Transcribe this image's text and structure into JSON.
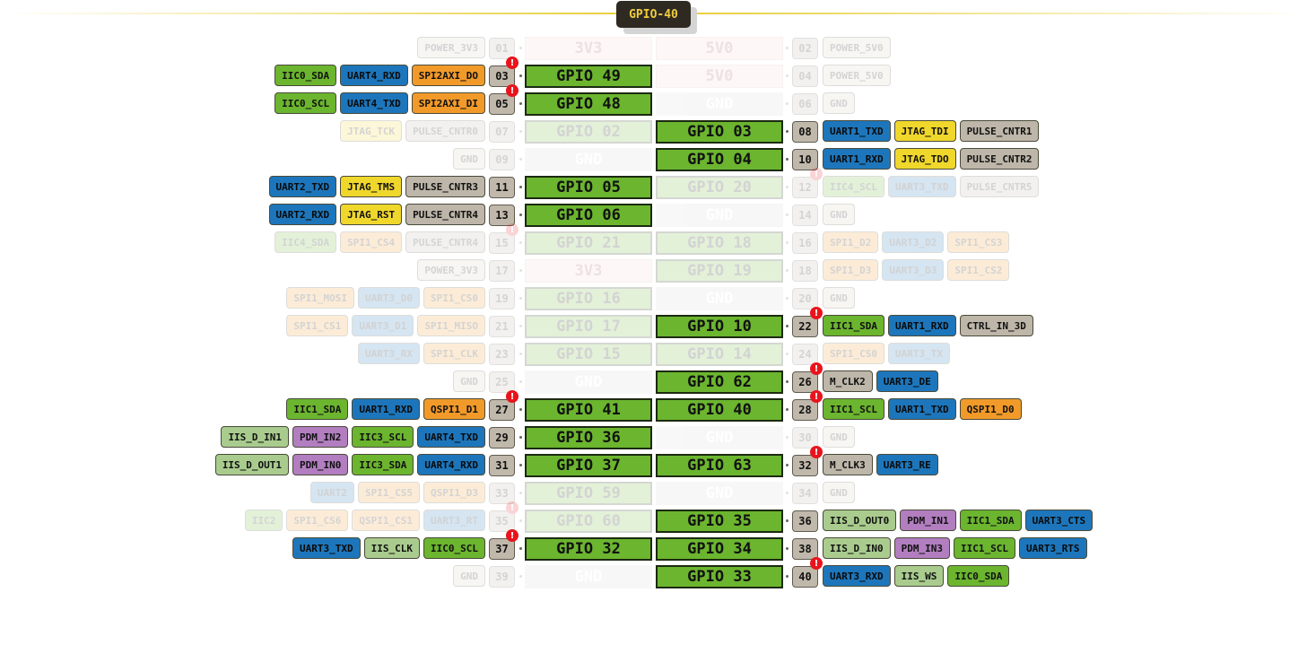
{
  "header": {
    "title": "GPIO-40"
  },
  "colors": {
    "gpio": "#6bb52f",
    "gnd": "#d6d6d6",
    "power": "#f7d6d6",
    "uart": "#1d76bb",
    "iic": "#6bb52f",
    "spi": "#f19a2a",
    "jtag": "#f0d72c",
    "pulse": "#bdb6a9",
    "iis": "#a9cc8e",
    "pdm": "#b27ec0",
    "warning": "#e8141c",
    "accent": "#f0cc40"
  },
  "warning_icon": "!",
  "rows": [
    {
      "dim": true,
      "l": {
        "num": "01",
        "label": "3V3",
        "type": "pwr",
        "funcs": [
          {
            "t": "POWER_3V3",
            "c": "plain"
          }
        ]
      },
      "r": {
        "num": "02",
        "label": "5V0",
        "type": "pwr",
        "funcs": [
          {
            "t": "POWER_5V0",
            "c": "plain"
          }
        ]
      }
    },
    {
      "dim": false,
      "l": {
        "num": "03",
        "label": "GPIO 49",
        "type": "gpio",
        "warn": true,
        "funcs": [
          {
            "t": "SPI2AXI_DO",
            "c": "spi"
          },
          {
            "t": "UART4_RXD",
            "c": "uart"
          },
          {
            "t": "IIC0_SDA",
            "c": "iic"
          }
        ]
      },
      "r": {
        "num": "04",
        "label": "5V0",
        "type": "pwr",
        "dim": true,
        "funcs": [
          {
            "t": "POWER_5V0",
            "c": "plain"
          }
        ]
      }
    },
    {
      "dim": false,
      "l": {
        "num": "05",
        "label": "GPIO 48",
        "type": "gpio",
        "warn": true,
        "funcs": [
          {
            "t": "SPI2AXI_DI",
            "c": "spi"
          },
          {
            "t": "UART4_TXD",
            "c": "uart"
          },
          {
            "t": "IIC0_SCL",
            "c": "iic"
          }
        ]
      },
      "r": {
        "num": "06",
        "label": "GND",
        "type": "gnd",
        "dim": true,
        "funcs": [
          {
            "t": "GND",
            "c": "plain"
          }
        ]
      }
    },
    {
      "dim": false,
      "l": {
        "num": "07",
        "label": "GPIO 02",
        "type": "gpio",
        "dim": true,
        "funcs": [
          {
            "t": "PULSE_CNTR0",
            "c": "pulse"
          },
          {
            "t": "JTAG_TCK",
            "c": "jtag"
          }
        ]
      },
      "r": {
        "num": "08",
        "label": "GPIO 03",
        "type": "gpio",
        "funcs": [
          {
            "t": "UART1_TXD",
            "c": "uart"
          },
          {
            "t": "JTAG_TDI",
            "c": "jtag"
          },
          {
            "t": "PULSE_CNTR1",
            "c": "pulse"
          }
        ]
      }
    },
    {
      "dim": false,
      "l": {
        "num": "09",
        "label": "GND",
        "type": "gnd",
        "dim": true,
        "funcs": [
          {
            "t": "GND",
            "c": "plain"
          }
        ]
      },
      "r": {
        "num": "10",
        "label": "GPIO 04",
        "type": "gpio",
        "funcs": [
          {
            "t": "UART1_RXD",
            "c": "uart"
          },
          {
            "t": "JTAG_TDO",
            "c": "jtag"
          },
          {
            "t": "PULSE_CNTR2",
            "c": "pulse"
          }
        ]
      }
    },
    {
      "dim": false,
      "l": {
        "num": "11",
        "label": "GPIO 05",
        "type": "gpio",
        "funcs": [
          {
            "t": "PULSE_CNTR3",
            "c": "pulse"
          },
          {
            "t": "JTAG_TMS",
            "c": "jtag"
          },
          {
            "t": "UART2_TXD",
            "c": "uart"
          }
        ]
      },
      "r": {
        "num": "12",
        "label": "GPIO 20",
        "type": "gpio",
        "dim": true,
        "warn": true,
        "funcs": [
          {
            "t": "IIC4_SCL",
            "c": "iic"
          },
          {
            "t": "UART3_TXD",
            "c": "uart"
          },
          {
            "t": "PULSE_CNTR5",
            "c": "pulse"
          }
        ]
      }
    },
    {
      "dim": false,
      "l": {
        "num": "13",
        "label": "GPIO 06",
        "type": "gpio",
        "funcs": [
          {
            "t": "PULSE_CNTR4",
            "c": "pulse"
          },
          {
            "t": "JTAG_RST",
            "c": "jtag"
          },
          {
            "t": "UART2_RXD",
            "c": "uart"
          }
        ]
      },
      "r": {
        "num": "14",
        "label": "GND",
        "type": "gnd",
        "dim": true,
        "funcs": [
          {
            "t": "GND",
            "c": "plain"
          }
        ]
      }
    },
    {
      "dim": true,
      "l": {
        "num": "15",
        "label": "GPIO 21",
        "type": "gpio",
        "warn": true,
        "funcs": [
          {
            "t": "PULSE_CNTR4",
            "c": "pulse"
          },
          {
            "t": "SPI1_CS4",
            "c": "spi"
          },
          {
            "t": "IIC4_SDA",
            "c": "iic"
          }
        ]
      },
      "r": {
        "num": "16",
        "label": "GPIO 18",
        "type": "gpio",
        "funcs": [
          {
            "t": "SPI1_D2",
            "c": "spi"
          },
          {
            "t": "UART3_D2",
            "c": "uart"
          },
          {
            "t": "SPI1_CS3",
            "c": "spi"
          }
        ]
      }
    },
    {
      "dim": true,
      "l": {
        "num": "17",
        "label": "3V3",
        "type": "pwr",
        "funcs": [
          {
            "t": "POWER_3V3",
            "c": "plain"
          }
        ]
      },
      "r": {
        "num": "18",
        "label": "GPIO 19",
        "type": "gpio",
        "funcs": [
          {
            "t": "SPI1_D3",
            "c": "spi"
          },
          {
            "t": "UART3_D3",
            "c": "uart"
          },
          {
            "t": "SPI1_CS2",
            "c": "spi"
          }
        ]
      }
    },
    {
      "dim": true,
      "l": {
        "num": "19",
        "label": "GPIO 16",
        "type": "gpio",
        "funcs": [
          {
            "t": "SPI1_CS0",
            "c": "spi"
          },
          {
            "t": "UART3_D0",
            "c": "uart"
          },
          {
            "t": "SPI1_MOSI",
            "c": "spi"
          }
        ]
      },
      "r": {
        "num": "20",
        "label": "GND",
        "type": "gnd",
        "funcs": [
          {
            "t": "GND",
            "c": "plain"
          }
        ]
      }
    },
    {
      "dim": false,
      "l": {
        "num": "21",
        "label": "GPIO 17",
        "type": "gpio",
        "dim": true,
        "funcs": [
          {
            "t": "SPI1_MISO",
            "c": "spi"
          },
          {
            "t": "UART3_D1",
            "c": "uart"
          },
          {
            "t": "SPI1_CS1",
            "c": "spi"
          }
        ]
      },
      "r": {
        "num": "22",
        "label": "GPIO 10",
        "type": "gpio",
        "warn": true,
        "funcs": [
          {
            "t": "IIC1_SDA",
            "c": "iic"
          },
          {
            "t": "UART1_RXD",
            "c": "uart"
          },
          {
            "t": "CTRL_IN_3D",
            "c": "ctrl"
          }
        ]
      }
    },
    {
      "dim": true,
      "l": {
        "num": "23",
        "label": "GPIO 15",
        "type": "gpio",
        "funcs": [
          {
            "t": "SPI1_CLK",
            "c": "spi"
          },
          {
            "t": "UART3_RX",
            "c": "uart"
          }
        ]
      },
      "r": {
        "num": "24",
        "label": "GPIO 14",
        "type": "gpio",
        "funcs": [
          {
            "t": "SPI1_CS0",
            "c": "spi"
          },
          {
            "t": "UART3_TX",
            "c": "uart"
          }
        ]
      }
    },
    {
      "dim": false,
      "l": {
        "num": "25",
        "label": "GND",
        "type": "gnd",
        "dim": true,
        "funcs": [
          {
            "t": "GND",
            "c": "plain"
          }
        ]
      },
      "r": {
        "num": "26",
        "label": "GPIO 62",
        "type": "gpio",
        "warn": true,
        "funcs": [
          {
            "t": "M_CLK2",
            "c": "mclk"
          },
          {
            "t": "UART3_DE",
            "c": "uart"
          }
        ]
      }
    },
    {
      "dim": false,
      "l": {
        "num": "27",
        "label": "GPIO 41",
        "type": "gpio",
        "warn": true,
        "funcs": [
          {
            "t": "QSPI1_D1",
            "c": "spi"
          },
          {
            "t": "UART1_RXD",
            "c": "uart"
          },
          {
            "t": "IIC1_SDA",
            "c": "iic"
          }
        ]
      },
      "r": {
        "num": "28",
        "label": "GPIO 40",
        "type": "gpio",
        "warn": true,
        "funcs": [
          {
            "t": "IIC1_SCL",
            "c": "iic"
          },
          {
            "t": "UART1_TXD",
            "c": "uart"
          },
          {
            "t": "QSPI1_D0",
            "c": "spi"
          }
        ]
      }
    },
    {
      "dim": false,
      "l": {
        "num": "29",
        "label": "GPIO 36",
        "type": "gpio",
        "funcs": [
          {
            "t": "UART4_TXD",
            "c": "uart"
          },
          {
            "t": "IIC3_SCL",
            "c": "iic"
          },
          {
            "t": "PDM_IN2",
            "c": "pdm"
          },
          {
            "t": "IIS_D_IN1",
            "c": "iis"
          }
        ]
      },
      "r": {
        "num": "30",
        "label": "GND",
        "type": "gnd",
        "dim": true,
        "funcs": [
          {
            "t": "GND",
            "c": "plain"
          }
        ]
      }
    },
    {
      "dim": false,
      "l": {
        "num": "31",
        "label": "GPIO 37",
        "type": "gpio",
        "funcs": [
          {
            "t": "UART4_RXD",
            "c": "uart"
          },
          {
            "t": "IIC3_SDA",
            "c": "iic"
          },
          {
            "t": "PDM_IN0",
            "c": "pdm"
          },
          {
            "t": "IIS_D_OUT1",
            "c": "iis"
          }
        ]
      },
      "r": {
        "num": "32",
        "label": "GPIO 63",
        "type": "gpio",
        "warn": true,
        "funcs": [
          {
            "t": "M_CLK3",
            "c": "mclk"
          },
          {
            "t": "UART3_RE",
            "c": "uart"
          }
        ]
      }
    },
    {
      "dim": true,
      "l": {
        "num": "33",
        "label": "GPIO 59",
        "type": "gpio",
        "funcs": [
          {
            "t": "QSPI1_D3",
            "c": "spi"
          },
          {
            "t": "SPI1_CS5",
            "c": "spi"
          },
          {
            "t": "UART2",
            "c": "uart"
          }
        ]
      },
      "r": {
        "num": "34",
        "label": "GND",
        "type": "gnd",
        "funcs": [
          {
            "t": "GND",
            "c": "plain"
          }
        ]
      }
    },
    {
      "dim": false,
      "l": {
        "num": "35",
        "label": "GPIO 60",
        "type": "gpio",
        "dim": true,
        "warn": true,
        "funcs": [
          {
            "t": "UART3_RT",
            "c": "uart"
          },
          {
            "t": "QSPI1_CS1",
            "c": "spi"
          },
          {
            "t": "SPI1_CS6",
            "c": "spi"
          },
          {
            "t": "IIC2",
            "c": "iic"
          }
        ]
      },
      "r": {
        "num": "36",
        "label": "GPIO 35",
        "type": "gpio",
        "funcs": [
          {
            "t": "IIS_D_OUT0",
            "c": "iis"
          },
          {
            "t": "PDM_IN1",
            "c": "pdm"
          },
          {
            "t": "IIC1_SDA",
            "c": "iic"
          },
          {
            "t": "UART3_CTS",
            "c": "uart"
          }
        ]
      }
    },
    {
      "dim": false,
      "l": {
        "num": "37",
        "label": "GPIO 32",
        "type": "gpio",
        "warn": true,
        "funcs": [
          {
            "t": "IIC0_SCL",
            "c": "iic"
          },
          {
            "t": "IIS_CLK",
            "c": "iis"
          },
          {
            "t": "UART3_TXD",
            "c": "uart"
          }
        ]
      },
      "r": {
        "num": "38",
        "label": "GPIO 34",
        "type": "gpio",
        "funcs": [
          {
            "t": "IIS_D_IN0",
            "c": "iis"
          },
          {
            "t": "PDM_IN3",
            "c": "pdm"
          },
          {
            "t": "IIC1_SCL",
            "c": "iic"
          },
          {
            "t": "UART3_RTS",
            "c": "uart"
          }
        ]
      }
    },
    {
      "dim": false,
      "l": {
        "num": "39",
        "label": "GND",
        "type": "gnd",
        "dim": true,
        "funcs": [
          {
            "t": "GND",
            "c": "plain"
          }
        ]
      },
      "r": {
        "num": "40",
        "label": "GPIO 33",
        "type": "gpio",
        "warn": true,
        "funcs": [
          {
            "t": "UART3_RXD",
            "c": "uart"
          },
          {
            "t": "IIS_WS",
            "c": "iis"
          },
          {
            "t": "IIC0_SDA",
            "c": "iic"
          }
        ]
      }
    }
  ]
}
